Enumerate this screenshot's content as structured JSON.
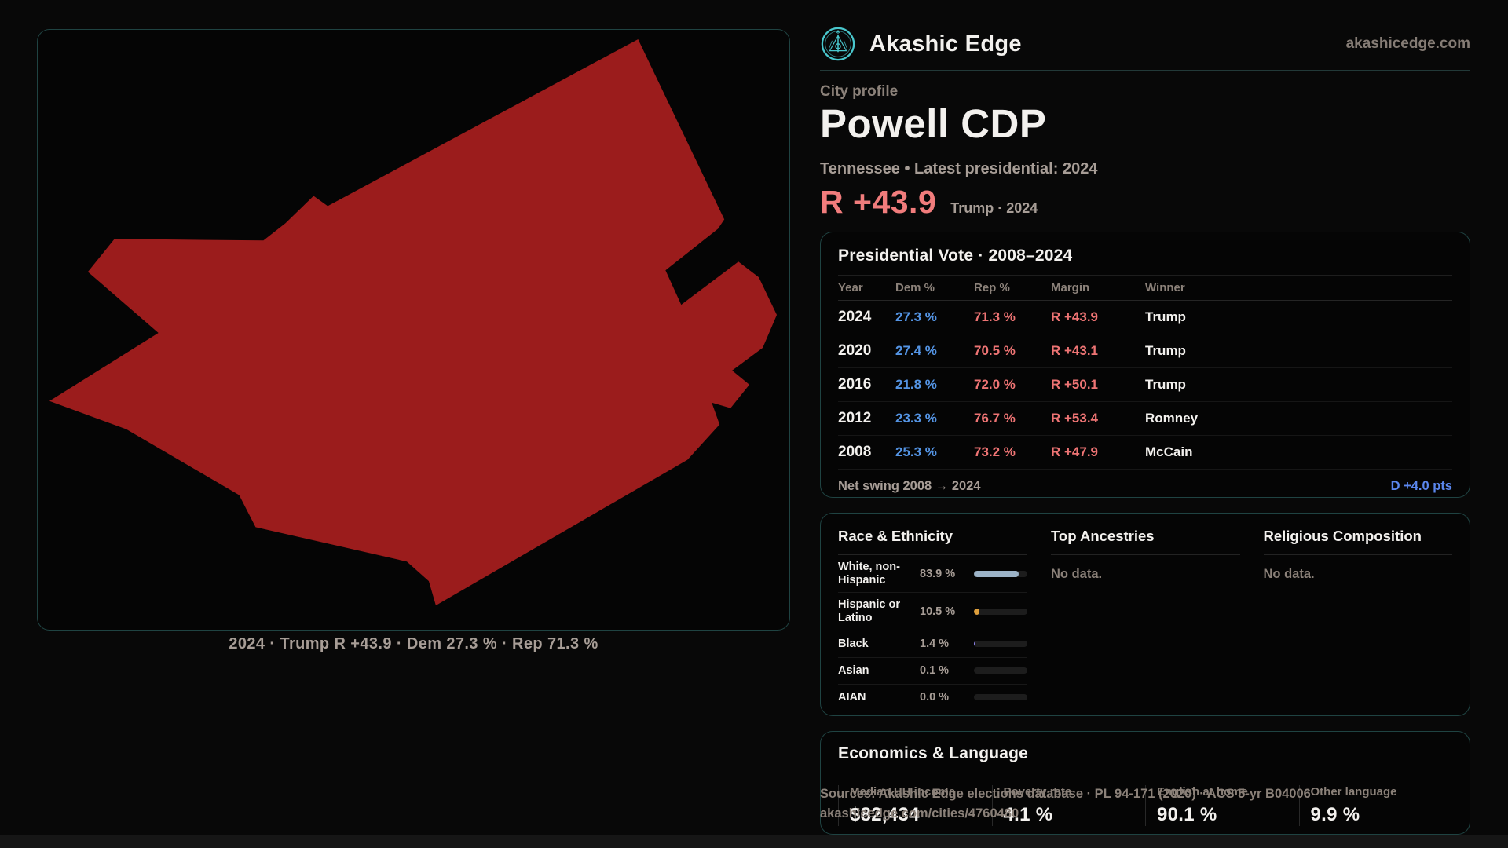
{
  "brand": {
    "name": "Akashic Edge",
    "domain": "akashicedge.com",
    "accent_teal": "#49c7cd"
  },
  "profile": {
    "eyebrow": "City profile",
    "title": "Powell CDP",
    "subtitle": "Tennessee • Latest presidential: 2024",
    "margin_big": "R +43.9",
    "margin_context": "Trump · 2024"
  },
  "map": {
    "caption": "2024 · Trump R +43.9 · Dem 27.3 % · Rep 71.3 %",
    "fill_color": "#9b1c1c"
  },
  "presidential": {
    "title": "Presidential Vote · 2008–2024",
    "columns": [
      "Year",
      "Dem %",
      "Rep %",
      "Margin",
      "Winner"
    ],
    "rows": [
      {
        "year": "2024",
        "dem": "27.3 %",
        "rep": "71.3 %",
        "margin": "R +43.9",
        "winner": "Trump"
      },
      {
        "year": "2020",
        "dem": "27.4 %",
        "rep": "70.5 %",
        "margin": "R +43.1",
        "winner": "Trump"
      },
      {
        "year": "2016",
        "dem": "21.8 %",
        "rep": "72.0 %",
        "margin": "R +50.1",
        "winner": "Trump"
      },
      {
        "year": "2012",
        "dem": "23.3 %",
        "rep": "76.7 %",
        "margin": "R +53.4",
        "winner": "Romney"
      },
      {
        "year": "2008",
        "dem": "25.3 %",
        "rep": "73.2 %",
        "margin": "R +47.9",
        "winner": "McCain"
      }
    ],
    "net_swing_label": "Net swing 2008 → 2024",
    "net_swing_value": "D +4.0 pts",
    "dem_color": "#5494e4",
    "rep_color": "#ee7474",
    "swing_color": "#5b87ee"
  },
  "demographics": {
    "race": {
      "title": "Race & Ethnicity",
      "rows": [
        {
          "label": "White, non-Hispanic",
          "value": "83.9 %",
          "pct": 83.9,
          "color": "#9db4c8"
        },
        {
          "label": "Hispanic or Latino",
          "value": "10.5 %",
          "pct": 10.5,
          "color": "#df9f3c"
        },
        {
          "label": "Black",
          "value": "1.4 %",
          "pct": 1.4,
          "color": "#8f85f0"
        },
        {
          "label": "Asian",
          "value": "0.1 %",
          "pct": 0.1,
          "color": "#9db4c8"
        },
        {
          "label": "AIAN",
          "value": "0.0 %",
          "pct": 0.0,
          "color": "#9db4c8"
        }
      ]
    },
    "ancestries": {
      "title": "Top Ancestries",
      "empty": "No data."
    },
    "religion": {
      "title": "Religious Composition",
      "empty": "No data."
    }
  },
  "economics": {
    "title": "Economics & Language",
    "stats": [
      {
        "label": "Median HH income",
        "value": "$82,434"
      },
      {
        "label": "Poverty rate",
        "value": "4.1 %"
      },
      {
        "label": "English at home",
        "value": "90.1 %"
      },
      {
        "label": "Other language",
        "value": "9.9 %"
      }
    ]
  },
  "footer": {
    "sources": "Sources: Akashic Edge elections database · PL 94-171 (2020) · ACS 5-yr B04006",
    "permalink": "akashicedge.com/cities/4760480"
  }
}
